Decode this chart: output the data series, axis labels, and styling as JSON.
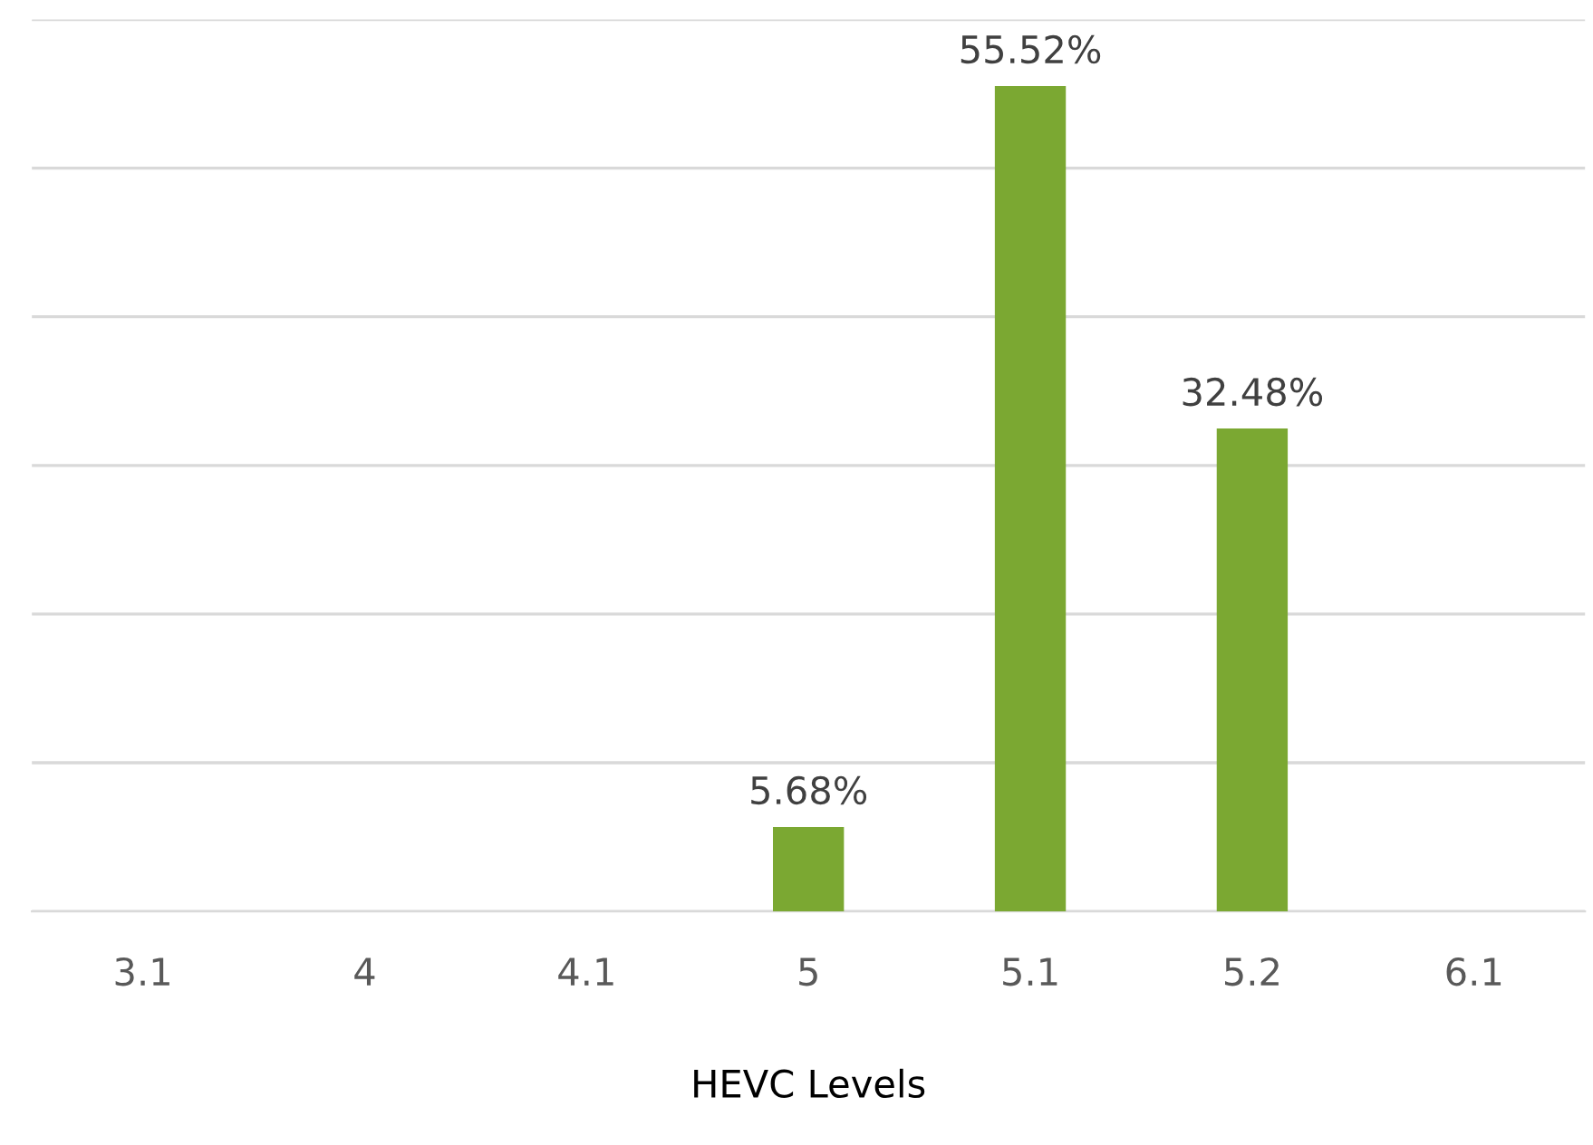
{
  "chart_data": {
    "type": "bar",
    "xlabel": "HEVC Levels",
    "categories": [
      "3.1",
      "4",
      "4.1",
      "5",
      "5.1",
      "5.2",
      "6.1"
    ],
    "values": [
      null,
      null,
      null,
      5.68,
      55.52,
      32.48,
      null
    ],
    "value_labels": [
      null,
      null,
      null,
      "5.68%",
      "55.52%",
      "32.48%",
      null
    ],
    "color": "#7ba832",
    "ylim": [
      0,
      60
    ],
    "yticks": [
      {
        "value": 0,
        "label": null
      },
      {
        "value": 10,
        "label": null
      },
      {
        "value": 20,
        "label": null
      },
      {
        "value": 30,
        "label": null
      },
      {
        "value": 40,
        "label": null
      },
      {
        "value": 50,
        "label": null
      },
      {
        "value": 60,
        "label": null
      }
    ],
    "grid": "y"
  }
}
